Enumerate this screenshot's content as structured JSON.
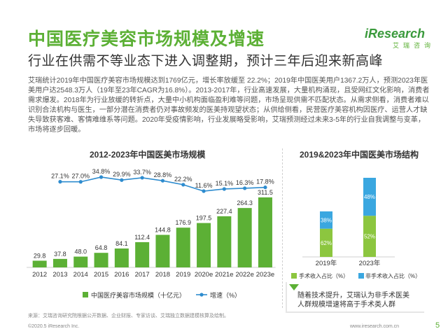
{
  "header": {
    "title": "中国医疗美容市场规模及增速",
    "subtitle": "行业在供需不等业态下进入调整期，预计三年后迎来新高峰"
  },
  "logo": {
    "brand": "iResearch",
    "brand_cn": "艾瑞咨询"
  },
  "intro_paragraph": "艾瑞统计2019年中国医疗美容市场规模达到1769亿元，增长率放缓至 22.2%；2019年中国医美用户1367.2万人，预测2023年医美用户达2548.3万人（19年至23年CAGR为16.8%）。2013-2017年，行业高速发展，大量机构涌现，且受网红文化影响，消费者需求爆发。2018年为行业放缓的转折点，大量中小机构面临盈利难等问题，市场呈现供需不匹配状态。从需求侧看，消费者难以识别合法机构与医生，一部分潜在消费者仍对事故频发的医美持观望状态；从供给侧看，民营医疗美容机构因医疗、运营人才缺失导致获客难、客情难维系等问题。2020年受疫情影响，行业发展略受影响，艾瑞预测经过未来3-5年的行业自我调整与变革，市场将逐步回暖。",
  "chart_data": [
    {
      "type": "bar",
      "title": "2012-2023年中国医美市场规模",
      "categories": [
        "2012",
        "2013",
        "2014",
        "2015",
        "2016",
        "2017",
        "2018",
        "2019",
        "2020e",
        "2021e",
        "2022e",
        "2023e"
      ],
      "series": [
        {
          "name": "中国医疗美容市场规模（十亿元）",
          "type": "bar",
          "color": "#5cb035",
          "values": [
            29.8,
            37.8,
            48.0,
            64.8,
            84.1,
            112.4,
            144.8,
            176.9,
            197.5,
            227.4,
            264.3,
            311.5
          ]
        },
        {
          "name": "增速（%）",
          "type": "line",
          "color": "#2e8ccf",
          "values": [
            null,
            27.1,
            27.0,
            34.8,
            29.9,
            33.7,
            28.8,
            22.2,
            11.6,
            15.1,
            16.3,
            17.8
          ],
          "labels": [
            "",
            "27.1%",
            "27.0%",
            "34.8%",
            "29.9%",
            "33.7%",
            "28.8%",
            "22.2%",
            "11.6%",
            "15.1%",
            "16.3%",
            "17.8%"
          ]
        }
      ],
      "bar_labels": [
        "29.8",
        "37.8",
        "48.0",
        "64.8",
        "84.1",
        "112.4",
        "144.8",
        "176.9",
        "197.5",
        "227.4",
        "264.3",
        "311.5"
      ],
      "legend": "bottom"
    },
    {
      "type": "bar",
      "stacked": true,
      "title": "2019&2023年中国医美市场结构",
      "categories": [
        "2019年",
        "2023年"
      ],
      "series": [
        {
          "name": "手术收入占比（%）",
          "color": "#8cc63f",
          "values": [
            62,
            52
          ],
          "labels": [
            "62%",
            "52%"
          ]
        },
        {
          "name": "非手术收入占比（%）",
          "color": "#3aa7e0",
          "values": [
            38,
            48
          ],
          "labels": [
            "38%",
            "48%"
          ]
        }
      ],
      "legend": "bottom"
    }
  ],
  "note": "随着技术提升，艾瑞认为非手术医美人群规模增速将高于手术类人群",
  "source": "来源：艾瑞咨询研究院根据公开数据、企业财报、专家访谈、艾瑞独立数据建模核算及绘制。",
  "footer": {
    "copyright": "©2020.5 iResearch Inc.",
    "website": "www.iresearch.com.cn",
    "page": "5"
  }
}
